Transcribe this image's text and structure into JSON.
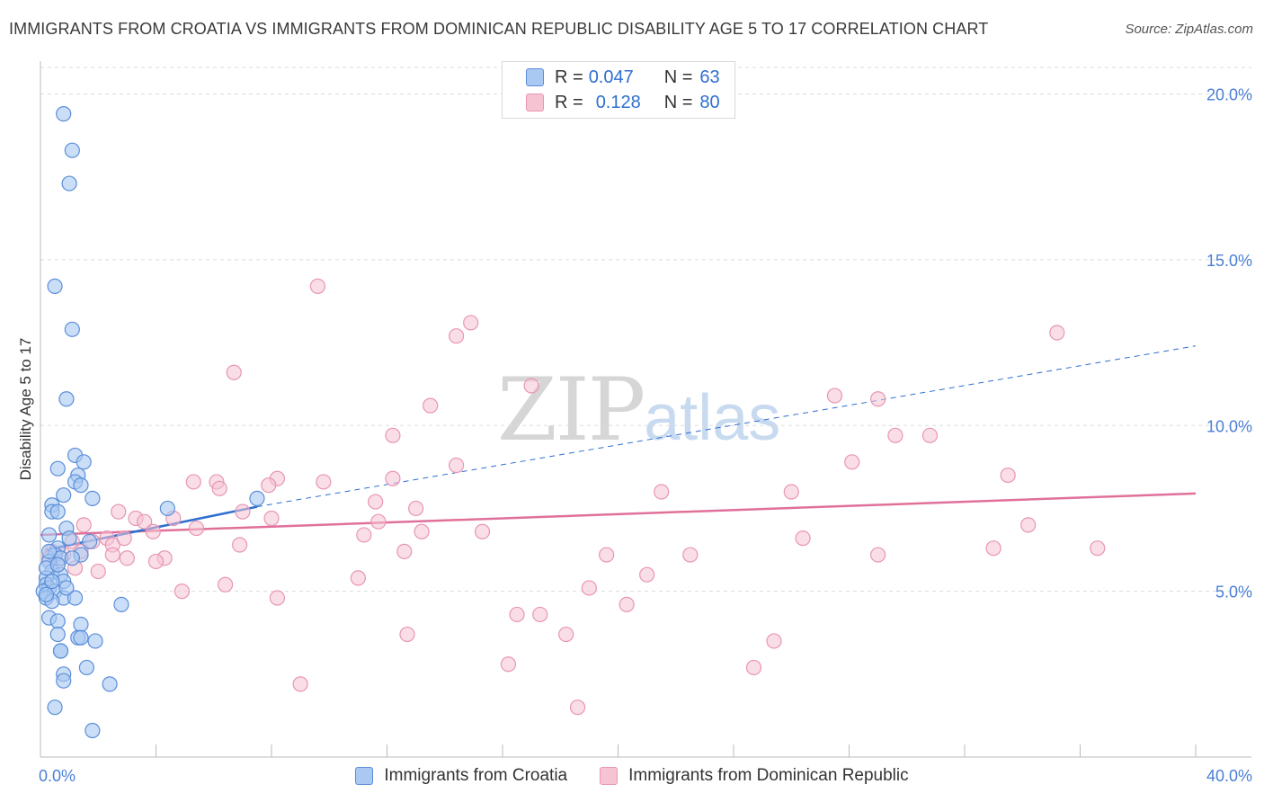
{
  "header": {
    "title": "IMMIGRANTS FROM CROATIA VS IMMIGRANTS FROM DOMINICAN REPUBLIC DISABILITY AGE 5 TO 17 CORRELATION CHART",
    "source": "Source: ZipAtlas.com"
  },
  "watermark": {
    "zip": "ZIP",
    "atlas": "atlas"
  },
  "legend": {
    "series1": {
      "r_label": "R =",
      "r_value": "0.047",
      "n_label": "N =",
      "n_value": "63"
    },
    "series2": {
      "r_label": "R =",
      "r_value": "0.128",
      "n_label": "N =",
      "n_value": "80"
    }
  },
  "bottom_legend": {
    "croatia": "Immigrants from Croatia",
    "dominican": "Immigrants from Dominican Republic"
  },
  "colors": {
    "blue_fill": "#a9c8f2",
    "blue_stroke": "#5b8fd9",
    "blue_line": "#2f6fd0",
    "pink_fill": "#f6c3d3",
    "pink_stroke": "#e896b2",
    "pink_line": "#e0709a",
    "grid": "#dcdcdc",
    "tick_text": "#4a7fd6"
  },
  "chart_data": {
    "type": "scatter",
    "title": "IMMIGRANTS FROM CROATIA VS IMMIGRANTS FROM DOMINICAN REPUBLIC DISABILITY AGE 5 TO 17 CORRELATION CHART",
    "xlabel": "",
    "ylabel": "Disability Age 5 to 17",
    "xlim": [
      0,
      40
    ],
    "ylim": [
      0,
      20.8
    ],
    "x_tick_labels": [
      "0.0%",
      "40.0%"
    ],
    "y_ticks": [
      5,
      10,
      15,
      20
    ],
    "y_tick_labels": [
      "5.0%",
      "10.0%",
      "15.0%",
      "20.0%"
    ],
    "series": [
      {
        "name": "Immigrants from Croatia",
        "color": "blue",
        "points": [
          [
            0.8,
            19.4
          ],
          [
            1.1,
            18.3
          ],
          [
            1.0,
            17.3
          ],
          [
            0.5,
            14.2
          ],
          [
            1.1,
            12.9
          ],
          [
            0.9,
            10.8
          ],
          [
            1.2,
            9.1
          ],
          [
            1.5,
            8.9
          ],
          [
            0.6,
            8.7
          ],
          [
            1.3,
            8.5
          ],
          [
            1.2,
            8.3
          ],
          [
            1.4,
            8.2
          ],
          [
            0.8,
            7.9
          ],
          [
            1.8,
            7.8
          ],
          [
            0.4,
            7.6
          ],
          [
            4.4,
            7.5
          ],
          [
            0.4,
            7.4
          ],
          [
            0.6,
            7.4
          ],
          [
            7.5,
            7.8
          ],
          [
            0.9,
            6.9
          ],
          [
            0.3,
            6.7
          ],
          [
            1.0,
            6.6
          ],
          [
            1.7,
            6.5
          ],
          [
            0.6,
            6.3
          ],
          [
            0.5,
            6.1
          ],
          [
            1.4,
            6.1
          ],
          [
            0.7,
            6.0
          ],
          [
            0.3,
            5.9
          ],
          [
            0.4,
            5.6
          ],
          [
            0.7,
            5.5
          ],
          [
            0.2,
            5.4
          ],
          [
            0.8,
            5.3
          ],
          [
            0.2,
            5.2
          ],
          [
            0.3,
            5.1
          ],
          [
            0.1,
            5.0
          ],
          [
            0.5,
            5.0
          ],
          [
            0.8,
            4.8
          ],
          [
            1.2,
            4.8
          ],
          [
            0.2,
            4.8
          ],
          [
            0.4,
            4.7
          ],
          [
            2.8,
            4.6
          ],
          [
            0.3,
            4.2
          ],
          [
            0.6,
            4.1
          ],
          [
            1.4,
            4.0
          ],
          [
            0.6,
            3.7
          ],
          [
            1.3,
            3.6
          ],
          [
            1.4,
            3.6
          ],
          [
            1.9,
            3.5
          ],
          [
            0.7,
            3.2
          ],
          [
            0.7,
            3.2
          ],
          [
            1.6,
            2.7
          ],
          [
            0.8,
            2.5
          ],
          [
            0.8,
            2.3
          ],
          [
            2.4,
            2.2
          ],
          [
            0.5,
            1.5
          ],
          [
            1.8,
            0.8
          ],
          [
            0.3,
            6.2
          ],
          [
            0.2,
            5.7
          ],
          [
            0.6,
            5.8
          ],
          [
            1.1,
            6.0
          ],
          [
            0.2,
            4.9
          ],
          [
            0.4,
            5.3
          ],
          [
            0.9,
            5.1
          ]
        ],
        "trend": {
          "x": [
            0.2,
            7.5
          ],
          "y": [
            6.25,
            7.55
          ],
          "dashed_to": [
            40,
            12.4
          ]
        }
      },
      {
        "name": "Immigrants from Dominican Republic",
        "color": "pink",
        "points": [
          [
            9.6,
            14.2
          ],
          [
            14.9,
            13.1
          ],
          [
            14.4,
            12.7
          ],
          [
            35.2,
            12.8
          ],
          [
            6.7,
            11.6
          ],
          [
            17.0,
            11.2
          ],
          [
            27.5,
            10.9
          ],
          [
            29.0,
            10.8
          ],
          [
            13.5,
            10.6
          ],
          [
            12.2,
            9.7
          ],
          [
            29.6,
            9.7
          ],
          [
            30.8,
            9.7
          ],
          [
            28.1,
            8.9
          ],
          [
            14.4,
            8.8
          ],
          [
            33.5,
            8.5
          ],
          [
            12.2,
            8.4
          ],
          [
            8.2,
            8.4
          ],
          [
            6.1,
            8.3
          ],
          [
            5.3,
            8.3
          ],
          [
            9.8,
            8.3
          ],
          [
            7.9,
            8.2
          ],
          [
            21.5,
            8.0
          ],
          [
            26.0,
            8.0
          ],
          [
            6.2,
            8.1
          ],
          [
            11.6,
            7.7
          ],
          [
            13.0,
            7.5
          ],
          [
            2.7,
            7.4
          ],
          [
            3.3,
            7.2
          ],
          [
            8.0,
            7.2
          ],
          [
            4.6,
            7.2
          ],
          [
            7.0,
            7.4
          ],
          [
            11.7,
            7.1
          ],
          [
            3.6,
            7.1
          ],
          [
            1.5,
            7.0
          ],
          [
            34.2,
            7.0
          ],
          [
            5.4,
            6.9
          ],
          [
            3.9,
            6.8
          ],
          [
            13.2,
            6.8
          ],
          [
            15.3,
            6.8
          ],
          [
            11.2,
            6.7
          ],
          [
            26.4,
            6.6
          ],
          [
            2.3,
            6.6
          ],
          [
            1.1,
            6.5
          ],
          [
            2.5,
            6.4
          ],
          [
            6.9,
            6.4
          ],
          [
            36.6,
            6.3
          ],
          [
            33.0,
            6.3
          ],
          [
            12.6,
            6.2
          ],
          [
            0.4,
            6.2
          ],
          [
            2.5,
            6.1
          ],
          [
            4.3,
            6.0
          ],
          [
            3.0,
            6.0
          ],
          [
            19.6,
            6.1
          ],
          [
            22.5,
            6.1
          ],
          [
            29.0,
            6.1
          ],
          [
            4.0,
            5.9
          ],
          [
            1.2,
            5.7
          ],
          [
            2.0,
            5.6
          ],
          [
            21.0,
            5.5
          ],
          [
            11.0,
            5.4
          ],
          [
            6.4,
            5.2
          ],
          [
            19.0,
            5.1
          ],
          [
            4.9,
            5.0
          ],
          [
            8.2,
            4.8
          ],
          [
            20.3,
            4.6
          ],
          [
            16.5,
            4.3
          ],
          [
            17.3,
            4.3
          ],
          [
            18.2,
            3.7
          ],
          [
            12.7,
            3.7
          ],
          [
            25.4,
            3.5
          ],
          [
            16.2,
            2.8
          ],
          [
            24.7,
            2.7
          ],
          [
            9.0,
            2.2
          ],
          [
            18.6,
            1.5
          ],
          [
            0.3,
            6.0
          ],
          [
            1.4,
            6.2
          ],
          [
            0.8,
            6.1
          ],
          [
            2.9,
            6.6
          ],
          [
            0.6,
            5.8
          ],
          [
            1.8,
            6.5
          ]
        ],
        "trend": {
          "x": [
            0,
            40
          ],
          "y": [
            6.7,
            7.95
          ]
        }
      }
    ]
  }
}
